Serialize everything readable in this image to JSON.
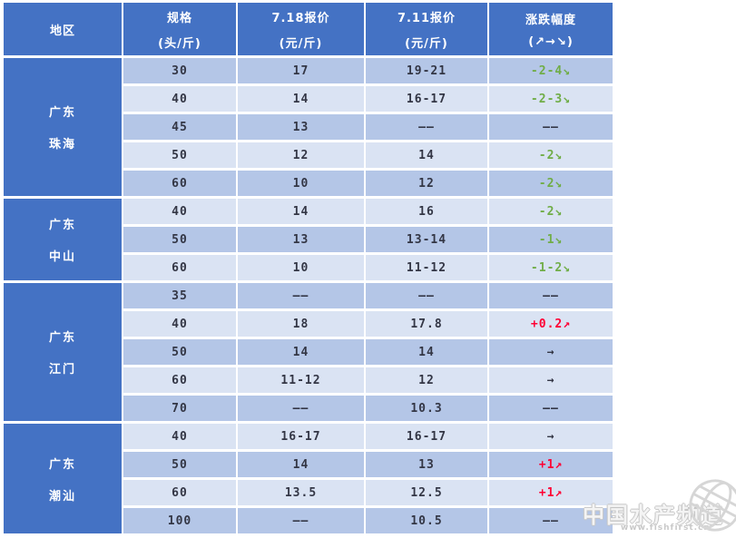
{
  "colors": {
    "header_blue": "#4472c4",
    "row_dark": "#b4c6e7",
    "row_light": "#dae3f3",
    "text_ink": "#333645",
    "trend_up_red": "#ff0033",
    "trend_down_green": "#70ad47"
  },
  "table": {
    "columns": [
      {
        "line1": "地区",
        "line2": ""
      },
      {
        "line1": "规格",
        "line2": "(头/斤)"
      },
      {
        "line1": "7.18报价",
        "line2": "(元/斤)"
      },
      {
        "line1": "7.11报价",
        "line2": "(元/斤)"
      },
      {
        "line1": "涨跌幅度",
        "line2": "(↗→↘)"
      }
    ],
    "groups": [
      {
        "region_line1": "广东",
        "region_line2": "珠海",
        "rows": [
          {
            "spec": "30",
            "p718": "17",
            "p711": "19-21",
            "change": "-2-4↘",
            "trend": "down"
          },
          {
            "spec": "40",
            "p718": "14",
            "p711": "16-17",
            "change": "-2-3↘",
            "trend": "down"
          },
          {
            "spec": "45",
            "p718": "13",
            "p711": "——",
            "change": "——",
            "trend": "none"
          },
          {
            "spec": "50",
            "p718": "12",
            "p711": "14",
            "change": "-2↘",
            "trend": "down"
          },
          {
            "spec": "60",
            "p718": "10",
            "p711": "12",
            "change": "-2↘",
            "trend": "down"
          }
        ]
      },
      {
        "region_line1": "广东",
        "region_line2": "中山",
        "rows": [
          {
            "spec": "40",
            "p718": "14",
            "p711": "16",
            "change": "-2↘",
            "trend": "down"
          },
          {
            "spec": "50",
            "p718": "13",
            "p711": "13-14",
            "change": "-1↘",
            "trend": "down"
          },
          {
            "spec": "60",
            "p718": "10",
            "p711": "11-12",
            "change": "-1-2↘",
            "trend": "down"
          }
        ]
      },
      {
        "region_line1": "广东",
        "region_line2": "江门",
        "rows": [
          {
            "spec": "35",
            "p718": "——",
            "p711": "——",
            "change": "——",
            "trend": "none"
          },
          {
            "spec": "40",
            "p718": "18",
            "p711": "17.8",
            "change": "+0.2↗",
            "trend": "up"
          },
          {
            "spec": "50",
            "p718": "14",
            "p711": "14",
            "change": "→",
            "trend": "flat"
          },
          {
            "spec": "60",
            "p718": "11-12",
            "p711": "12",
            "change": "→",
            "trend": "flat"
          },
          {
            "spec": "70",
            "p718": "——",
            "p711": "10.3",
            "change": "——",
            "trend": "none"
          }
        ]
      },
      {
        "region_line1": "广东",
        "region_line2": "潮汕",
        "rows": [
          {
            "spec": "40",
            "p718": "16-17",
            "p711": "16-17",
            "change": "→",
            "trend": "flat"
          },
          {
            "spec": "50",
            "p718": "14",
            "p711": "13",
            "change": "+1↗",
            "trend": "up"
          },
          {
            "spec": "60",
            "p718": "13.5",
            "p711": "12.5",
            "change": "+1↗",
            "trend": "up"
          },
          {
            "spec": "100",
            "p718": "——",
            "p711": "10.5",
            "change": "——",
            "trend": "none"
          }
        ]
      }
    ]
  },
  "watermark": {
    "title": "中国水产频道",
    "url": "www.fishfirst.cn"
  }
}
